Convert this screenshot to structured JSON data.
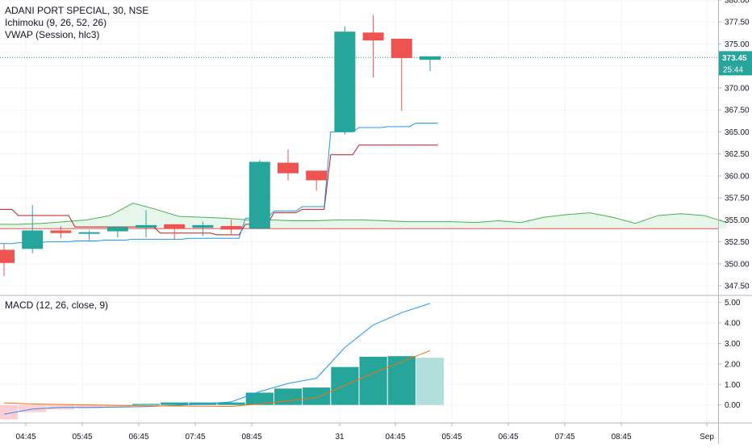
{
  "legend": {
    "symbol": "ADANI PORT SPECIAL, 30, NSE",
    "ichimoku": "Ichimoku (9, 26, 52, 26)",
    "vwap": "VWAP (Session, hlc3)",
    "macd": "MACD (12, 26, close, 9)"
  },
  "price_badge": {
    "price": "373.45",
    "countdown": "25:44"
  },
  "colors": {
    "up": "#26a69a",
    "down": "#ef5350",
    "vwap": "#2196f3",
    "kijun": "#b71c1c",
    "span": "#4caf50",
    "span_fill": "#e3f4e6",
    "hline": "#ef5350",
    "badge": "#26a69a",
    "macd_line": "#2196f3",
    "signal_line": "#ff6d00",
    "hist_up": "#26a69a",
    "hist_down": "#ffcdd2",
    "hist_fade": "#b2dfdb"
  },
  "chart_data": [
    {
      "type": "candlestick",
      "y_ticks": [
        347.5,
        350,
        352.5,
        355,
        357.5,
        360,
        362.5,
        365,
        367.5,
        370,
        372.5,
        375,
        377.5,
        380
      ],
      "y_tick_labels": [
        "347.50",
        "350.00",
        "352.50",
        "355.00",
        "357.50",
        "360.00",
        "362.50",
        "365.00",
        "367.50",
        "370.00",
        "372.50",
        "375.00",
        "377.50",
        "380.00"
      ],
      "ylim": [
        346.5,
        380
      ],
      "x_tick_labels": [
        "04:45",
        "05:45",
        "06:45",
        "07:45",
        "08:45",
        "31",
        "04:45",
        "05:45",
        "06:45",
        "07:45",
        "08:45",
        "Sep"
      ],
      "last_price": 373.45,
      "candles": [
        {
          "o": 351.6,
          "h": 352.3,
          "l": 348.6,
          "c": 350.1
        },
        {
          "o": 351.7,
          "h": 356.7,
          "l": 351.2,
          "c": 353.8
        },
        {
          "o": 353.8,
          "h": 354.3,
          "l": 352.9,
          "c": 353.5
        },
        {
          "o": 353.5,
          "h": 353.8,
          "l": 352.7,
          "c": 353.6
        },
        {
          "o": 353.7,
          "h": 354.1,
          "l": 353.0,
          "c": 354.2
        },
        {
          "o": 354.1,
          "h": 356.1,
          "l": 353.0,
          "c": 354.4
        },
        {
          "o": 354.5,
          "h": 354.5,
          "l": 352.7,
          "c": 354.0
        },
        {
          "o": 354.1,
          "h": 354.8,
          "l": 353.2,
          "c": 354.4
        },
        {
          "o": 354.3,
          "h": 355.0,
          "l": 353.4,
          "c": 353.9
        },
        {
          "o": 354.0,
          "h": 361.8,
          "l": 354.0,
          "c": 361.6
        },
        {
          "o": 361.5,
          "h": 363.0,
          "l": 359.5,
          "c": 360.3
        },
        {
          "o": 360.6,
          "h": 360.6,
          "l": 358.3,
          "c": 359.5
        },
        {
          "o": 365.0,
          "h": 377.0,
          "l": 364.7,
          "c": 376.4
        },
        {
          "o": 376.3,
          "h": 378.3,
          "l": 371.2,
          "c": 375.4
        },
        {
          "o": 375.6,
          "h": 375.6,
          "l": 367.4,
          "c": 373.4
        },
        {
          "o": 373.2,
          "h": 373.5,
          "l": 371.9,
          "c": 373.6
        }
      ],
      "vwap": [
        352.3,
        352.4,
        352.5,
        352.6,
        352.7,
        352.8,
        352.8,
        352.9,
        352.9,
        355.2,
        356.0,
        356.5,
        365.0,
        365.5,
        365.6,
        366.0
      ],
      "kijun": [
        356.2,
        355.5,
        355.5,
        354.2,
        354.2,
        354.2,
        353.5,
        353.5,
        353.3,
        354.5,
        355.8,
        356.2,
        362.4,
        363.5,
        363.5,
        363.5
      ],
      "cloud_span": [
        354.5,
        354.5,
        354.6,
        354.8,
        355.0,
        355.5,
        356.9,
        356.2,
        355.4,
        355.3,
        355.2,
        355.0,
        355.0,
        354.9,
        354.9,
        355.0,
        355.0,
        354.9,
        354.8,
        354.8,
        354.8,
        354.7,
        354.9,
        354.7,
        355.3,
        355.6,
        355.8,
        355.3,
        354.6,
        355.5,
        355.7,
        355.5,
        354.7
      ],
      "cloud_base": 354.0,
      "hline": 354.0
    },
    {
      "type": "macd",
      "y_ticks": [
        0,
        1,
        2,
        3,
        4,
        5
      ],
      "y_tick_labels": [
        "0.00",
        "1.00",
        "2.00",
        "3.00",
        "4.00",
        "5.00"
      ],
      "ylim": [
        -0.8,
        5.3
      ],
      "histogram": [
        -0.7,
        -0.35,
        -0.22,
        -0.17,
        -0.13,
        0.05,
        0.12,
        0.12,
        0.12,
        0.6,
        0.8,
        0.85,
        1.85,
        2.35,
        2.38,
        2.3
      ],
      "macd": [
        -0.45,
        -0.2,
        -0.12,
        -0.12,
        -0.1,
        -0.08,
        -0.03,
        0.05,
        0.15,
        0.65,
        1.05,
        1.3,
        2.8,
        3.9,
        4.5,
        4.95
      ],
      "signal": [
        0.1,
        0.05,
        0.02,
        0.0,
        -0.02,
        -0.04,
        -0.05,
        -0.06,
        -0.07,
        0.05,
        0.2,
        0.35,
        0.95,
        1.55,
        2.1,
        2.65
      ]
    }
  ]
}
